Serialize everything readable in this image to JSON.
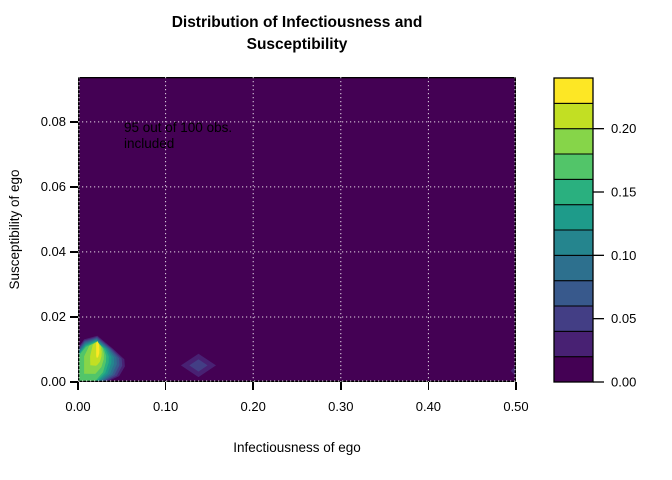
{
  "chart_data": {
    "type": "filled_contour",
    "title_line1": "Distribution of Infectiousness and",
    "title_line2": "Susceptibility",
    "xlabel": "Infectiousness of ego",
    "ylabel": "Susceptibility of ego",
    "xlim": [
      0,
      0.5
    ],
    "ylim": [
      0,
      0.0938
    ],
    "x_ticks": {
      "values": [
        0,
        0.1,
        0.2,
        0.3,
        0.4,
        0.5
      ],
      "labels": [
        "0.00",
        "0.10",
        "0.20",
        "0.30",
        "0.40",
        "0.50"
      ]
    },
    "y_ticks": {
      "values": [
        0,
        0.02,
        0.04,
        0.06,
        0.08
      ],
      "labels": [
        "0.00",
        "0.02",
        "0.04",
        "0.06",
        "0.08"
      ]
    },
    "grid": {
      "color": "#ffffff",
      "style": "dotted"
    },
    "background_color": "#440154",
    "annotation": {
      "line1": "95 out of 100 obs.",
      "line2": "included",
      "x": 0.054,
      "y": 0.078
    },
    "legend": {
      "range": [
        0,
        0.24
      ],
      "levels": [
        0,
        0.02,
        0.04,
        0.06,
        0.08,
        0.1,
        0.12,
        0.14,
        0.16,
        0.18,
        0.2,
        0.22,
        0.24
      ],
      "colors": [
        "#440154",
        "#482173",
        "#433E85",
        "#38598C",
        "#2D708E",
        "#25858E",
        "#1E9B8A",
        "#2AB07F",
        "#52C569",
        "#86D549",
        "#C2DF23",
        "#FDE725"
      ],
      "tick_values": [
        0,
        0.05,
        0.1,
        0.15,
        0.2
      ],
      "tick_labels": [
        "0.00",
        "0.05",
        "0.10",
        "0.15",
        "0.20"
      ]
    },
    "features": [
      {
        "name": "main-density-peak",
        "kind": "contour-rings",
        "outer_level_index": 1,
        "mid_level_index": 8,
        "inner_level_index": 11,
        "outer": [
          [
            0,
            0.0105
          ],
          [
            0.007,
            0.0131
          ],
          [
            0.022,
            0.0142
          ],
          [
            0.04,
            0.0102
          ],
          [
            0.0528,
            0.007
          ],
          [
            0.0535,
            0.0048
          ],
          [
            0.047,
            0.0018
          ],
          [
            0.0355,
            0.0004
          ],
          [
            0.03,
            0
          ],
          [
            0,
            0
          ]
        ],
        "mid": [
          [
            0,
            0.0078
          ],
          [
            0.009,
            0.0108
          ],
          [
            0.0205,
            0.0122
          ],
          [
            0.0295,
            0.0102
          ],
          [
            0.0322,
            0.008
          ],
          [
            0.032,
            0.0062
          ],
          [
            0.0285,
            0.003
          ],
          [
            0.022,
            0.001
          ],
          [
            0.019,
            0
          ],
          [
            0,
            0
          ]
        ],
        "inner": [
          [
            0.0208,
            0.008
          ],
          [
            0.0208,
            0.0118
          ],
          [
            0.0222,
            0.0126
          ],
          [
            0.0238,
            0.0118
          ],
          [
            0.0244,
            0.01
          ],
          [
            0.0242,
            0.0088
          ],
          [
            0.0232,
            0.0078
          ],
          [
            0.022,
            0.0074
          ],
          [
            0.0214,
            0.0075
          ],
          [
            0.021,
            0.0077
          ]
        ]
      },
      {
        "name": "secondary-peak",
        "kind": "diamond",
        "center": [
          0.1375,
          0.0051
        ],
        "rings": [
          {
            "level_index": 1,
            "rx": 0.02,
            "ry": 0.0036
          },
          {
            "level_index": 2,
            "rx": 0.0105,
            "ry": 0.0019
          }
        ]
      },
      {
        "name": "edge-peak",
        "kind": "diamond",
        "center": [
          0.5035,
          0.0034
        ],
        "rings": [
          {
            "level_index": 1,
            "rx": 0.0095,
            "ry": 0.0028
          }
        ]
      }
    ]
  }
}
